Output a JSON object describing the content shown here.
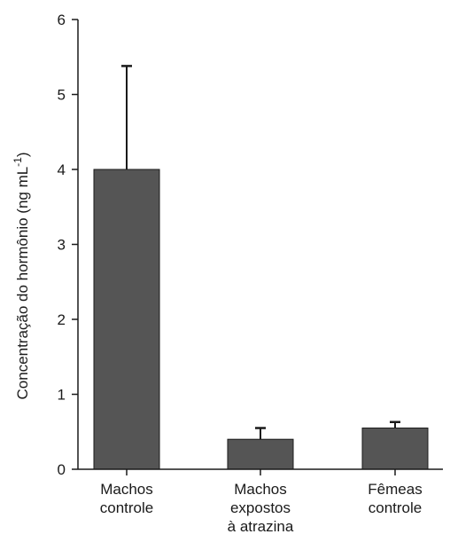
{
  "chart_data": {
    "type": "bar",
    "title": "",
    "xlabel": "",
    "ylabel": {
      "main": "Concentração do hormônio (ng mL",
      "sup": "-1",
      "tail": ")"
    },
    "categories": [
      [
        "Machos",
        "controle"
      ],
      [
        "Machos",
        "expostos",
        "à atrazina"
      ],
      [
        "Fêmeas",
        "controle"
      ]
    ],
    "values": [
      4.0,
      0.4,
      0.55
    ],
    "error_upper": [
      5.38,
      0.55,
      0.63
    ],
    "ylim": [
      0,
      6
    ],
    "yticks": [
      0,
      1,
      2,
      3,
      4,
      5,
      6
    ],
    "grid": false,
    "legend": "none",
    "bar_color": "#555555",
    "axis_color": "#1a1a1a"
  }
}
